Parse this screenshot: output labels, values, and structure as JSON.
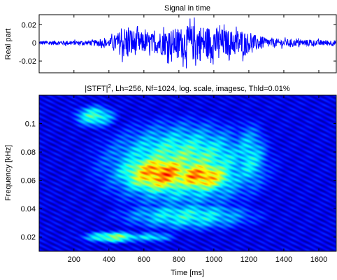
{
  "chart_data": [
    {
      "type": "line",
      "title": "Signal in time",
      "xlabel": "",
      "ylabel": "Real part",
      "xlim": [
        1,
        1700
      ],
      "ylim": [
        -0.033,
        0.031
      ],
      "yticks": [
        -0.02,
        0,
        0.02
      ],
      "ytick_labels": [
        "-0.02",
        "0",
        "0.02"
      ],
      "xticks": [
        200,
        400,
        600,
        800,
        1000,
        1200,
        1400,
        1600
      ],
      "xtick_labels": [
        "",
        "",
        "",
        "",
        "",
        "",
        "",
        ""
      ],
      "series": [
        {
          "color": "#0000ff",
          "envelope": {
            "x": [
              1,
              200,
              300,
              400,
              450,
              500,
              550,
              600,
              650,
              700,
              800,
              900,
              1000,
              1100,
              1150,
              1200,
              1300,
              1400,
              1600,
              1700
            ],
            "amplitude": [
              0.003,
              0.003,
              0.0035,
              0.006,
              0.014,
              0.025,
              0.017,
              0.014,
              0.013,
              0.017,
              0.021,
              0.026,
              0.022,
              0.017,
              0.02,
              0.013,
              0.007,
              0.005,
              0.004,
              0.004
            ]
          }
        }
      ],
      "grid": false
    },
    {
      "type": "heatmap",
      "title_main": "|STFT|",
      "title_superscript": "2",
      "title_rest": ", Lh=256, Nf=1024, log. scale, imagesc, Thld=0.01%",
      "xlabel": "Time [ms]",
      "ylabel": "Frequency [kHz]",
      "xlim": [
        1,
        1700
      ],
      "ylim": [
        0.01,
        0.12
      ],
      "xticks": [
        200,
        400,
        600,
        800,
        1000,
        1200,
        1400,
        1600
      ],
      "xtick_labels": [
        "200",
        "400",
        "600",
        "800",
        "1000",
        "1200",
        "1400",
        "1600"
      ],
      "yticks": [
        0.02,
        0.04,
        0.06,
        0.08,
        0.1
      ],
      "ytick_labels": [
        "0.02",
        "0.04",
        "0.06",
        "0.08",
        "0.1"
      ],
      "colormap": "jet",
      "scale": "log",
      "background_color": "#00007f",
      "energy_blobs": [
        {
          "time": 700,
          "freq": 0.065,
          "sigma_time": 180,
          "sigma_freq": 0.011,
          "level": 0.88
        },
        {
          "time": 920,
          "freq": 0.063,
          "sigma_time": 150,
          "sigma_freq": 0.009,
          "level": 0.86
        },
        {
          "time": 820,
          "freq": 0.07,
          "sigma_time": 330,
          "sigma_freq": 0.022,
          "level": 0.58
        },
        {
          "time": 430,
          "freq": 0.02,
          "sigma_time": 130,
          "sigma_freq": 0.003,
          "level": 0.58
        },
        {
          "time": 640,
          "freq": 0.02,
          "sigma_time": 110,
          "sigma_freq": 0.003,
          "level": 0.4
        },
        {
          "time": 320,
          "freq": 0.105,
          "sigma_time": 90,
          "sigma_freq": 0.006,
          "level": 0.5
        },
        {
          "time": 850,
          "freq": 0.035,
          "sigma_time": 300,
          "sigma_freq": 0.008,
          "level": 0.45
        },
        {
          "time": 1200,
          "freq": 0.075,
          "sigma_time": 90,
          "sigma_freq": 0.02,
          "level": 0.42
        }
      ],
      "floor_level": 0.12
    }
  ]
}
